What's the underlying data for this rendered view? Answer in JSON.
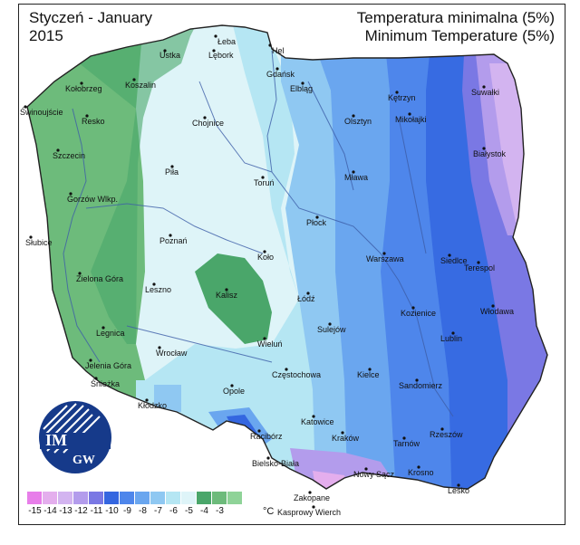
{
  "title": {
    "left_line1": "Styczeń - January",
    "left_line2": "2015",
    "right_line1": "Temperatura minimalna (5%)",
    "right_line2": "Minimum Temperature (5%)"
  },
  "logo": {
    "text_top": "IM",
    "text_bottom": "GW"
  },
  "legend": {
    "unit": "°C",
    "items": [
      {
        "label": "-15",
        "color": "#e77ee9"
      },
      {
        "label": "-14",
        "color": "#e4aeed"
      },
      {
        "label": "-13",
        "color": "#d3b4f0"
      },
      {
        "label": "-12",
        "color": "#b39cec"
      },
      {
        "label": "-11",
        "color": "#7a78e4"
      },
      {
        "label": "-10",
        "color": "#3466e0"
      },
      {
        "label": "-9",
        "color": "#4e86eb"
      },
      {
        "label": "-8",
        "color": "#6aa6ef"
      },
      {
        "label": "-7",
        "color": "#8fc8f2"
      },
      {
        "label": "-6",
        "color": "#b5e6f3"
      },
      {
        "label": "-5",
        "color": "#def4f8"
      },
      {
        "label": "-4",
        "color": "#4aa66a"
      },
      {
        "label": "-3",
        "color": "#6dbb7b"
      },
      {
        "label": "",
        "color": "#8fd398"
      }
    ]
  },
  "cities": [
    {
      "name": "Łeba"
    },
    {
      "name": "Hel"
    },
    {
      "name": "Ustka"
    },
    {
      "name": "Lębork"
    },
    {
      "name": "Gdańsk"
    },
    {
      "name": "Kołobrzeg"
    },
    {
      "name": "Koszalin"
    },
    {
      "name": "Elbląg"
    },
    {
      "name": "Kętrzyn"
    },
    {
      "name": "Suwałki"
    },
    {
      "name": "Świnoujście"
    },
    {
      "name": "Resko"
    },
    {
      "name": "Chojnice"
    },
    {
      "name": "Olsztyn"
    },
    {
      "name": "Mikołajki"
    },
    {
      "name": "Szczecin"
    },
    {
      "name": "Piła"
    },
    {
      "name": "Toruń"
    },
    {
      "name": "Mława"
    },
    {
      "name": "Białystok"
    },
    {
      "name": "Gorzów Wlkp."
    },
    {
      "name": "Płock"
    },
    {
      "name": "Słubice"
    },
    {
      "name": "Poznań"
    },
    {
      "name": "Koło"
    },
    {
      "name": "Warszawa"
    },
    {
      "name": "Siedlce"
    },
    {
      "name": "Terespol"
    },
    {
      "name": "Zielona Góra"
    },
    {
      "name": "Leszno"
    },
    {
      "name": "Kalisz"
    },
    {
      "name": "Łódź"
    },
    {
      "name": "Sulejów"
    },
    {
      "name": "Kozienice"
    },
    {
      "name": "Włodawa"
    },
    {
      "name": "Legnica"
    },
    {
      "name": "Wrocław"
    },
    {
      "name": "Wieluń"
    },
    {
      "name": "Lublin"
    },
    {
      "name": "Jelenia Góra"
    },
    {
      "name": "Śnieżka"
    },
    {
      "name": "Częstochowa"
    },
    {
      "name": "Kielce"
    },
    {
      "name": "Sandomierz"
    },
    {
      "name": "Kłodzko"
    },
    {
      "name": "Opole"
    },
    {
      "name": "Katowice"
    },
    {
      "name": "Racibórz"
    },
    {
      "name": "Kraków"
    },
    {
      "name": "Tarnów"
    },
    {
      "name": "Rzeszów"
    },
    {
      "name": "Bielsko-Biała"
    },
    {
      "name": "Nowy Sącz"
    },
    {
      "name": "Krosno"
    },
    {
      "name": "Lesko"
    },
    {
      "name": "Zakopane"
    },
    {
      "name": "Kasprowy Wierch"
    }
  ]
}
